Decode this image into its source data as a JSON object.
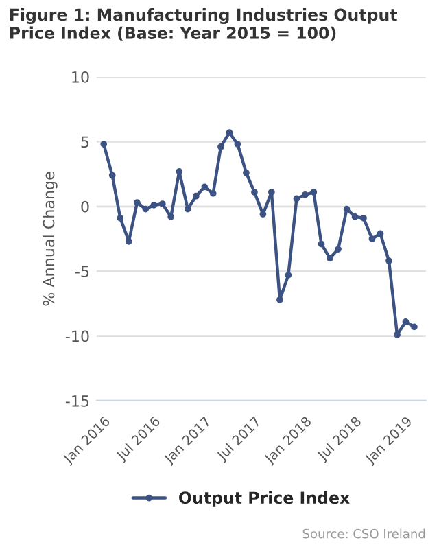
{
  "chart_data": {
    "type": "line",
    "title": "Figure 1: Manufacturing Industries Output Price Index (Base: Year 2015 = 100)",
    "ylabel": "% Annual Change",
    "x": [
      "2016-01",
      "2016-02",
      "2016-03",
      "2016-04",
      "2016-05",
      "2016-06",
      "2016-07",
      "2016-08",
      "2016-09",
      "2016-10",
      "2016-11",
      "2016-12",
      "2017-01",
      "2017-02",
      "2017-03",
      "2017-04",
      "2017-05",
      "2017-06",
      "2017-07",
      "2017-08",
      "2017-09",
      "2017-10",
      "2017-11",
      "2017-12",
      "2018-01",
      "2018-02",
      "2018-03",
      "2018-04",
      "2018-05",
      "2018-06",
      "2018-07",
      "2018-08",
      "2018-09",
      "2018-10",
      "2018-11",
      "2018-12",
      "2019-01",
      "2019-02"
    ],
    "series": [
      {
        "name": "Output Price Index",
        "color": "#3b5282",
        "values": [
          4.8,
          2.4,
          -0.9,
          -2.7,
          0.3,
          -0.2,
          0.1,
          0.2,
          -0.8,
          2.7,
          -0.2,
          0.8,
          1.5,
          1.0,
          4.6,
          5.7,
          4.8,
          2.6,
          1.1,
          -0.6,
          1.1,
          -7.2,
          -5.3,
          0.6,
          0.9,
          1.1,
          -2.9,
          -4.0,
          -3.3,
          -0.2,
          -0.8,
          -0.9,
          -2.5,
          -2.1,
          -4.2,
          -9.9,
          -8.9,
          -9.3
        ]
      }
    ],
    "xlim": [
      "2015-12-06",
      "2019-03-15"
    ],
    "xticks": [
      {
        "value": "2016-01",
        "label": "Jan 2016"
      },
      {
        "value": "2016-07",
        "label": "Jul 2016"
      },
      {
        "value": "2017-01",
        "label": "Jan 2017"
      },
      {
        "value": "2017-07",
        "label": "Jul 2017"
      },
      {
        "value": "2018-01",
        "label": "Jan 2018"
      },
      {
        "value": "2018-07",
        "label": "Jul 2018"
      },
      {
        "value": "2019-01",
        "label": "Jan 2019"
      }
    ],
    "ylim": [
      -15,
      10
    ],
    "yticks": [
      -15,
      -10,
      -5,
      0,
      5,
      10
    ],
    "grid": "y",
    "legend": "bottom",
    "marker": "circle",
    "line_style": "solid",
    "annotations": [
      "Source: CSO Ireland"
    ]
  }
}
